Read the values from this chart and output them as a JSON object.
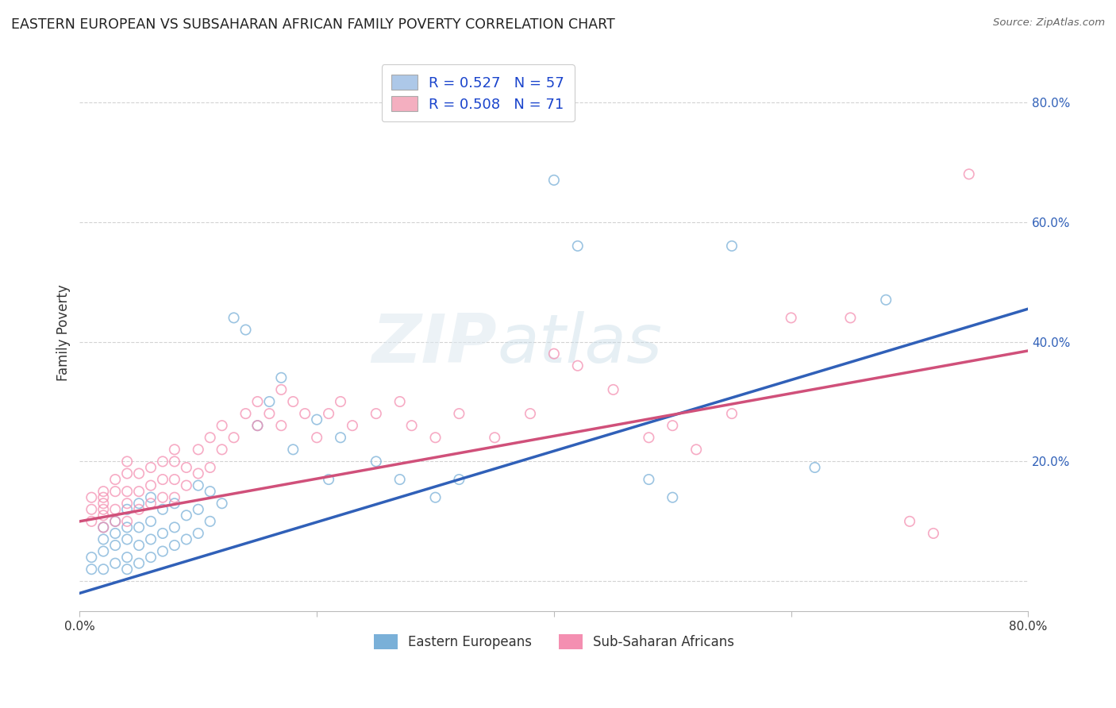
{
  "title": "EASTERN EUROPEAN VS SUBSAHARAN AFRICAN FAMILY POVERTY CORRELATION CHART",
  "source": "Source: ZipAtlas.com",
  "ylabel": "Family Poverty",
  "xlim": [
    0.0,
    0.8
  ],
  "ylim": [
    -0.05,
    0.88
  ],
  "watermark_zip": "ZIP",
  "watermark_atlas": "atlas",
  "legend1_label": "R = 0.527   N = 57",
  "legend2_label": "R = 0.508   N = 71",
  "legend1_patch_color": "#adc8e8",
  "legend2_patch_color": "#f4afc0",
  "scatter1_color": "#7ab0d8",
  "scatter2_color": "#f48fb1",
  "line1_color": "#3060b8",
  "line2_color": "#d0507a",
  "legend_bottom_label1": "Eastern Europeans",
  "legend_bottom_label2": "Sub-Saharan Africans",
  "ee_line_x0": 0.0,
  "ee_line_y0": -0.02,
  "ee_line_x1": 0.8,
  "ee_line_y1": 0.455,
  "ssa_line_x0": 0.0,
  "ssa_line_y0": 0.1,
  "ssa_line_x1": 0.8,
  "ssa_line_y1": 0.385,
  "ee_x": [
    0.01,
    0.01,
    0.02,
    0.02,
    0.02,
    0.02,
    0.03,
    0.03,
    0.03,
    0.03,
    0.04,
    0.04,
    0.04,
    0.04,
    0.04,
    0.05,
    0.05,
    0.05,
    0.05,
    0.06,
    0.06,
    0.06,
    0.06,
    0.07,
    0.07,
    0.07,
    0.08,
    0.08,
    0.08,
    0.09,
    0.09,
    0.1,
    0.1,
    0.1,
    0.11,
    0.11,
    0.12,
    0.13,
    0.14,
    0.15,
    0.16,
    0.17,
    0.18,
    0.2,
    0.21,
    0.22,
    0.25,
    0.27,
    0.3,
    0.32,
    0.4,
    0.42,
    0.48,
    0.5,
    0.55,
    0.62,
    0.68
  ],
  "ee_y": [
    0.02,
    0.04,
    0.02,
    0.05,
    0.07,
    0.09,
    0.03,
    0.06,
    0.08,
    0.1,
    0.02,
    0.04,
    0.07,
    0.09,
    0.12,
    0.03,
    0.06,
    0.09,
    0.13,
    0.04,
    0.07,
    0.1,
    0.14,
    0.05,
    0.08,
    0.12,
    0.06,
    0.09,
    0.13,
    0.07,
    0.11,
    0.08,
    0.12,
    0.16,
    0.1,
    0.15,
    0.13,
    0.44,
    0.42,
    0.26,
    0.3,
    0.34,
    0.22,
    0.27,
    0.17,
    0.24,
    0.2,
    0.17,
    0.14,
    0.17,
    0.67,
    0.56,
    0.17,
    0.14,
    0.56,
    0.19,
    0.47
  ],
  "ssa_x": [
    0.01,
    0.01,
    0.01,
    0.02,
    0.02,
    0.02,
    0.02,
    0.02,
    0.02,
    0.03,
    0.03,
    0.03,
    0.03,
    0.04,
    0.04,
    0.04,
    0.04,
    0.04,
    0.05,
    0.05,
    0.05,
    0.06,
    0.06,
    0.06,
    0.07,
    0.07,
    0.07,
    0.08,
    0.08,
    0.08,
    0.08,
    0.09,
    0.09,
    0.1,
    0.1,
    0.11,
    0.11,
    0.12,
    0.12,
    0.13,
    0.14,
    0.15,
    0.15,
    0.16,
    0.17,
    0.17,
    0.18,
    0.19,
    0.2,
    0.21,
    0.22,
    0.23,
    0.25,
    0.27,
    0.28,
    0.3,
    0.32,
    0.35,
    0.38,
    0.4,
    0.42,
    0.45,
    0.48,
    0.5,
    0.52,
    0.55,
    0.6,
    0.65,
    0.7,
    0.72,
    0.75
  ],
  "ssa_y": [
    0.1,
    0.12,
    0.14,
    0.09,
    0.11,
    0.13,
    0.15,
    0.12,
    0.14,
    0.1,
    0.12,
    0.15,
    0.17,
    0.1,
    0.13,
    0.15,
    0.18,
    0.2,
    0.12,
    0.15,
    0.18,
    0.13,
    0.16,
    0.19,
    0.14,
    0.17,
    0.2,
    0.14,
    0.17,
    0.2,
    0.22,
    0.16,
    0.19,
    0.18,
    0.22,
    0.19,
    0.24,
    0.22,
    0.26,
    0.24,
    0.28,
    0.26,
    0.3,
    0.28,
    0.32,
    0.26,
    0.3,
    0.28,
    0.24,
    0.28,
    0.3,
    0.26,
    0.28,
    0.3,
    0.26,
    0.24,
    0.28,
    0.24,
    0.28,
    0.38,
    0.36,
    0.32,
    0.24,
    0.26,
    0.22,
    0.28,
    0.44,
    0.44,
    0.1,
    0.08,
    0.68
  ]
}
